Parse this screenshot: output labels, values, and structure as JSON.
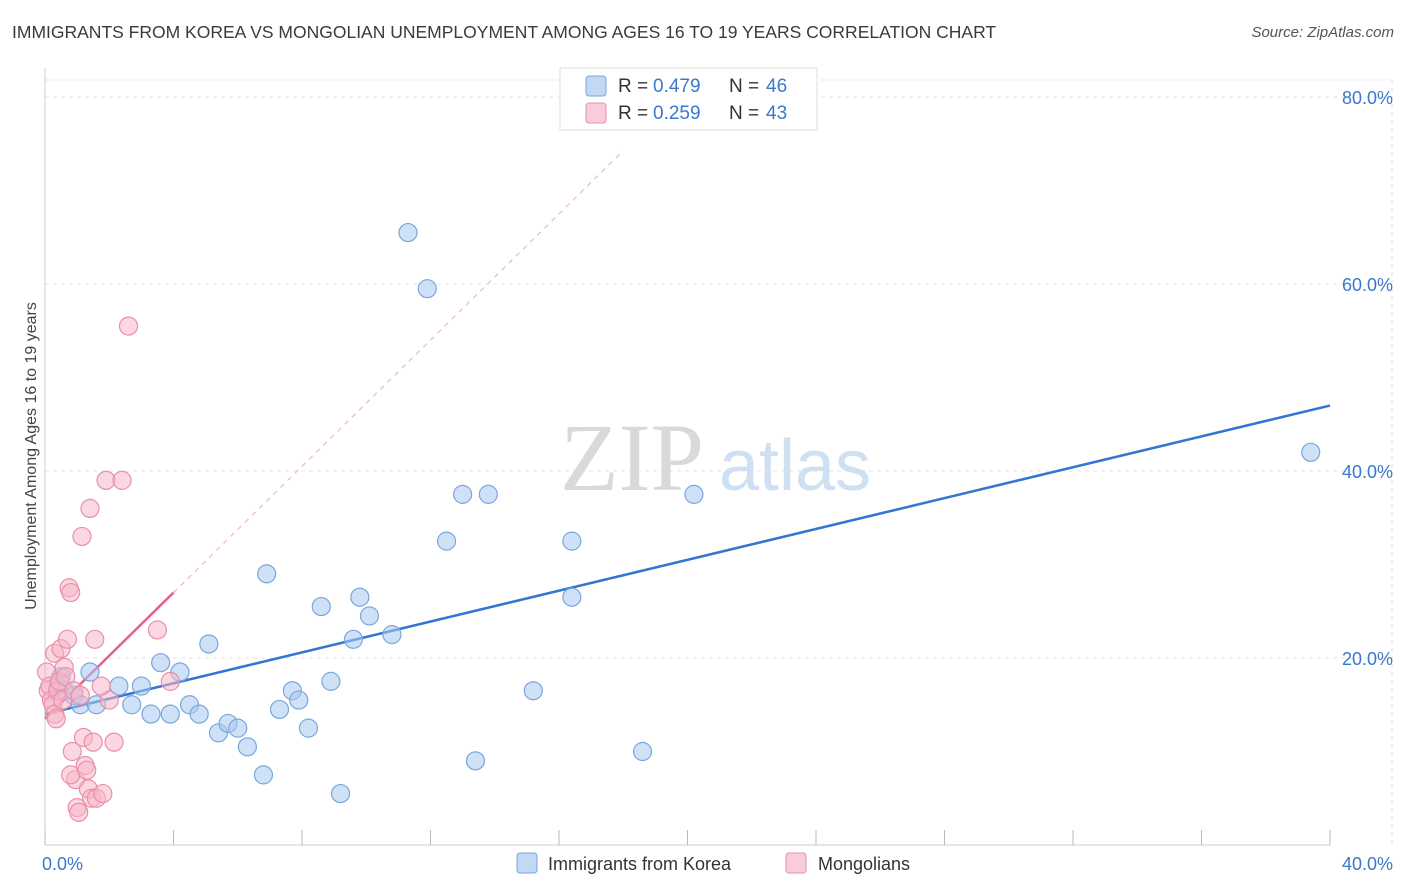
{
  "chart_data": {
    "type": "scatter",
    "title": "IMMIGRANTS FROM KOREA VS MONGOLIAN UNEMPLOYMENT AMONG AGES 16 TO 19 YEARS CORRELATION CHART",
    "source": "Source: ZipAtlas.com",
    "watermark": {
      "zip": "ZIP",
      "atlas": "atlas"
    },
    "xlabel": "",
    "ylabel": "Unemployment Among Ages 16 to 19 years",
    "xlim": [
      0,
      40
    ],
    "ylim": [
      0,
      80
    ],
    "x_tick_labels": [
      {
        "value": 0,
        "label": "0.0%"
      },
      {
        "value": 40,
        "label": "40.0%"
      }
    ],
    "y_tick_labels": [
      {
        "value": 20,
        "label": "20.0%"
      },
      {
        "value": 40,
        "label": "40.0%"
      },
      {
        "value": 60,
        "label": "60.0%"
      },
      {
        "value": 80,
        "label": "80.0%"
      }
    ],
    "grid": true,
    "legend_position": "top-center",
    "stats": [
      {
        "series": "Immigrants from Korea",
        "r_label": "R =",
        "r_value": "0.479",
        "n_label": "N =",
        "n_value": "46",
        "color": "#a8c8f0"
      },
      {
        "series": "Mongolians",
        "r_label": "R =",
        "r_value": "0.259",
        "n_label": "N =",
        "n_value": "43",
        "color": "#f5b6c8"
      }
    ],
    "series": [
      {
        "name": "Immigrants from Korea",
        "color": "#a8c8f0",
        "stroke": "#7aa6dc",
        "trend_color": "#3376d1",
        "trend": {
          "x0": 0,
          "y0": 14.0,
          "x1": 40,
          "y1": 47.0,
          "dashed_extension": false
        },
        "points": [
          [
            0.4,
            17.0
          ],
          [
            0.5,
            18.0
          ],
          [
            0.6,
            16.5
          ],
          [
            0.9,
            16.0
          ],
          [
            1.1,
            15.0
          ],
          [
            1.4,
            18.5
          ],
          [
            1.6,
            15.0
          ],
          [
            2.3,
            17.0
          ],
          [
            2.7,
            15.0
          ],
          [
            3.0,
            17.0
          ],
          [
            3.3,
            14.0
          ],
          [
            3.6,
            19.5
          ],
          [
            3.9,
            14.0
          ],
          [
            4.2,
            18.5
          ],
          [
            4.5,
            15.0
          ],
          [
            4.8,
            14.0
          ],
          [
            5.1,
            21.5
          ],
          [
            5.4,
            12.0
          ],
          [
            5.7,
            13.0
          ],
          [
            6.0,
            12.5
          ],
          [
            6.3,
            10.5
          ],
          [
            6.8,
            7.5
          ],
          [
            6.9,
            29.0
          ],
          [
            7.3,
            14.5
          ],
          [
            7.7,
            16.5
          ],
          [
            7.9,
            15.5
          ],
          [
            8.2,
            12.5
          ],
          [
            8.6,
            25.5
          ],
          [
            8.9,
            17.5
          ],
          [
            9.2,
            5.5
          ],
          [
            9.6,
            22.0
          ],
          [
            9.8,
            26.5
          ],
          [
            10.1,
            24.5
          ],
          [
            10.8,
            22.5
          ],
          [
            11.3,
            65.5
          ],
          [
            11.9,
            59.5
          ],
          [
            12.5,
            32.5
          ],
          [
            13.0,
            37.5
          ],
          [
            13.4,
            9.0
          ],
          [
            13.8,
            37.5
          ],
          [
            15.2,
            16.5
          ],
          [
            16.4,
            32.5
          ],
          [
            16.4,
            26.5
          ],
          [
            18.6,
            10.0
          ],
          [
            20.2,
            37.5
          ],
          [
            39.4,
            42.0
          ]
        ]
      },
      {
        "name": "Mongolians",
        "color": "#f5b6c8",
        "stroke": "#e890ab",
        "trend_color": "#e8608c",
        "trend": {
          "x0": 0,
          "y0": 13.5,
          "x1": 4.0,
          "y1": 27.0,
          "extend_to_x": 18.0
        },
        "points": [
          [
            0.05,
            18.5
          ],
          [
            0.1,
            16.5
          ],
          [
            0.15,
            17.0
          ],
          [
            0.2,
            15.5
          ],
          [
            0.25,
            15.0
          ],
          [
            0.3,
            20.5
          ],
          [
            0.3,
            14.0
          ],
          [
            0.35,
            13.5
          ],
          [
            0.4,
            16.5
          ],
          [
            0.45,
            17.5
          ],
          [
            0.5,
            21.0
          ],
          [
            0.55,
            15.5
          ],
          [
            0.6,
            19.0
          ],
          [
            0.65,
            18.0
          ],
          [
            0.7,
            22.0
          ],
          [
            0.75,
            27.5
          ],
          [
            0.8,
            27.0
          ],
          [
            0.85,
            10.0
          ],
          [
            0.9,
            16.5
          ],
          [
            0.95,
            7.0
          ],
          [
            0.8,
            7.5
          ],
          [
            1.0,
            4.0
          ],
          [
            1.05,
            3.5
          ],
          [
            1.1,
            16.0
          ],
          [
            1.15,
            33.0
          ],
          [
            1.2,
            11.5
          ],
          [
            1.25,
            8.5
          ],
          [
            1.3,
            8.0
          ],
          [
            1.35,
            6.0
          ],
          [
            1.4,
            36.0
          ],
          [
            1.5,
            11.0
          ],
          [
            1.45,
            5.0
          ],
          [
            1.55,
            22.0
          ],
          [
            1.6,
            5.0
          ],
          [
            1.8,
            5.5
          ],
          [
            1.9,
            39.0
          ],
          [
            2.0,
            15.5
          ],
          [
            2.15,
            11.0
          ],
          [
            2.4,
            39.0
          ],
          [
            2.6,
            55.5
          ],
          [
            3.5,
            23.0
          ],
          [
            3.9,
            17.5
          ],
          [
            1.75,
            17.0
          ]
        ]
      }
    ]
  }
}
